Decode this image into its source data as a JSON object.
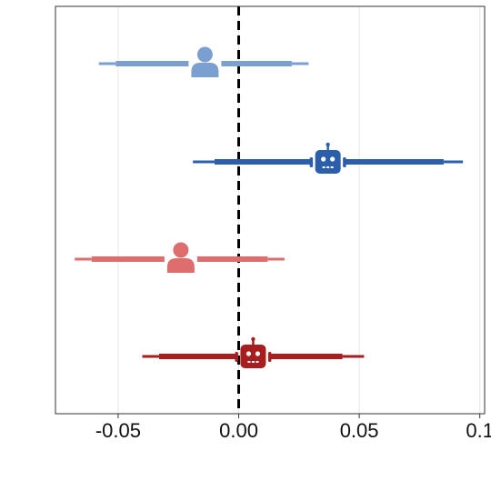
{
  "chart_data": {
    "type": "forest",
    "xlabel": "",
    "ylabel": "",
    "xlim": [
      -0.076,
      0.102
    ],
    "x_ticks": [
      -0.05,
      0.0,
      0.05,
      0.1
    ],
    "x_tick_labels": [
      "-0.05",
      "0.00",
      "0.05",
      "0.1"
    ],
    "reference_line": {
      "x": 0.0,
      "style": "dashed",
      "color": "#000000"
    },
    "grid": {
      "vertical": true,
      "horizontal": false
    },
    "series": [
      {
        "icon": "person-icon",
        "color": "#7b9fd1",
        "estimate": -0.014,
        "ci_inner": [
          -0.051,
          0.022
        ],
        "ci_outer": [
          -0.058,
          0.029
        ]
      },
      {
        "icon": "robot-icon",
        "color": "#2b5fab",
        "estimate": 0.037,
        "ci_inner": [
          -0.01,
          0.085
        ],
        "ci_outer": [
          -0.019,
          0.093
        ]
      },
      {
        "icon": "person-icon",
        "color": "#de6e6e",
        "estimate": -0.024,
        "ci_inner": [
          -0.061,
          0.012
        ],
        "ci_outer": [
          -0.068,
          0.019
        ]
      },
      {
        "icon": "robot-icon",
        "color": "#a81e1e",
        "estimate": 0.006,
        "ci_inner": [
          -0.033,
          0.043
        ],
        "ci_outer": [
          -0.04,
          0.052
        ]
      }
    ]
  }
}
